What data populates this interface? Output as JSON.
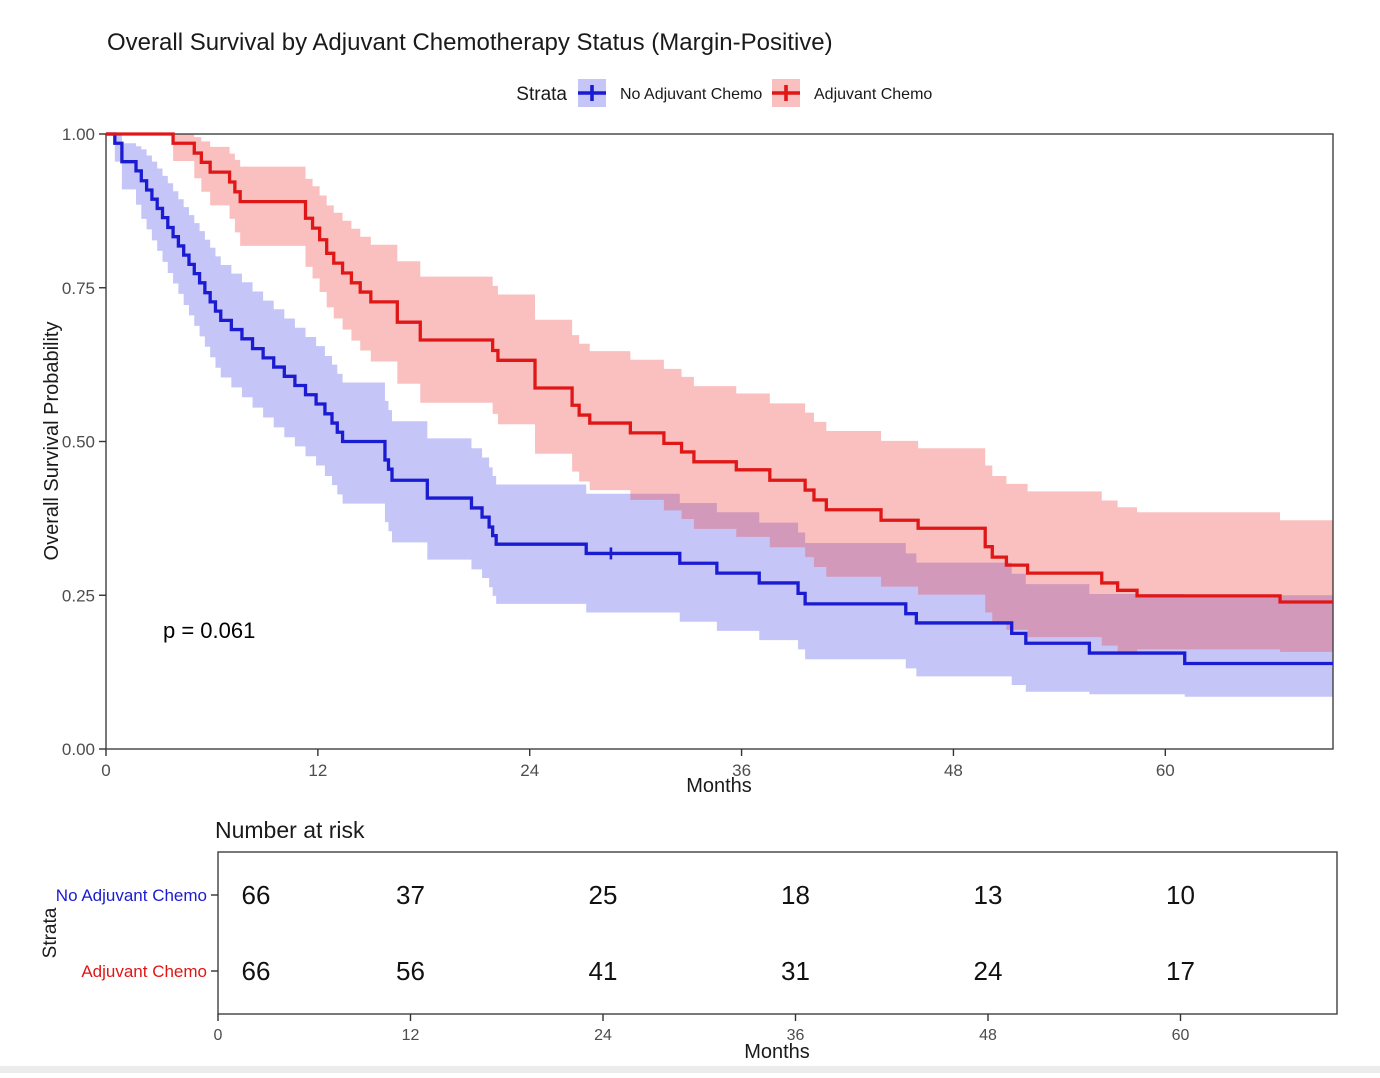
{
  "chart_data": {
    "type": "line",
    "subtype": "kaplan_meier_step",
    "title": "Overall Survival by Adjuvant Chemotherapy Status (Margin-Positive)",
    "p_value_label": "p = 0.061",
    "xlabel": "Months",
    "ylabel": "Overall Survival Probability",
    "xlim": [
      0,
      69.5
    ],
    "ylim": [
      0,
      1
    ],
    "x_ticks": [
      0,
      12,
      24,
      36,
      48,
      60
    ],
    "y_ticks": [
      0,
      0.25,
      0.5,
      0.75,
      1.0
    ],
    "y_tick_labels": [
      "0.00",
      "0.25",
      "0.50",
      "0.75",
      "1.00"
    ],
    "grid": "off",
    "legend": {
      "title": "Strata",
      "position": "top"
    },
    "series": [
      {
        "name": "No Adjuvant Chemo",
        "color": "#1b1bd1",
        "ci_fill": "rgba(80,80,235,0.33)",
        "key_fill": "#c5c5f8",
        "points": [
          [
            0,
            1,
            1,
            1
          ],
          [
            0.5,
            0.985,
            0.955,
            1
          ],
          [
            0.9,
            0.955,
            0.91,
            0.985
          ],
          [
            1.7,
            0.94,
            0.885,
            0.98
          ],
          [
            2.0,
            0.924,
            0.862,
            0.975
          ],
          [
            2.3,
            0.909,
            0.845,
            0.965
          ],
          [
            2.6,
            0.894,
            0.827,
            0.955
          ],
          [
            2.9,
            0.879,
            0.81,
            0.944
          ],
          [
            3.2,
            0.864,
            0.792,
            0.932
          ],
          [
            3.5,
            0.848,
            0.774,
            0.92
          ],
          [
            3.8,
            0.833,
            0.757,
            0.907
          ],
          [
            4.1,
            0.818,
            0.74,
            0.894
          ],
          [
            4.4,
            0.803,
            0.722,
            0.881
          ],
          [
            4.7,
            0.788,
            0.705,
            0.868
          ],
          [
            5.0,
            0.773,
            0.688,
            0.855
          ],
          [
            5.3,
            0.758,
            0.671,
            0.842
          ],
          [
            5.6,
            0.742,
            0.654,
            0.828
          ],
          [
            5.9,
            0.727,
            0.637,
            0.815
          ],
          [
            6.2,
            0.712,
            0.62,
            0.801
          ],
          [
            6.5,
            0.697,
            0.604,
            0.787
          ],
          [
            7.1,
            0.682,
            0.588,
            0.773
          ],
          [
            7.7,
            0.667,
            0.572,
            0.759
          ],
          [
            8.3,
            0.651,
            0.555,
            0.744
          ],
          [
            8.9,
            0.636,
            0.539,
            0.729
          ],
          [
            9.5,
            0.621,
            0.523,
            0.715
          ],
          [
            10.1,
            0.606,
            0.507,
            0.7
          ],
          [
            10.7,
            0.591,
            0.492,
            0.685
          ],
          [
            11.3,
            0.576,
            0.476,
            0.67
          ],
          [
            11.9,
            0.561,
            0.461,
            0.655
          ],
          [
            12.4,
            0.545,
            0.444,
            0.639
          ],
          [
            12.8,
            0.53,
            0.429,
            0.625
          ],
          [
            13.1,
            0.515,
            0.414,
            0.61
          ],
          [
            13.4,
            0.5,
            0.399,
            0.596
          ],
          [
            15.8,
            0.47,
            0.369,
            0.566
          ],
          [
            16.0,
            0.455,
            0.354,
            0.551
          ],
          [
            16.2,
            0.437,
            0.336,
            0.533
          ],
          [
            18.2,
            0.408,
            0.308,
            0.505
          ],
          [
            20.7,
            0.392,
            0.292,
            0.489
          ],
          [
            21.3,
            0.377,
            0.278,
            0.474
          ],
          [
            21.7,
            0.361,
            0.263,
            0.458
          ],
          [
            21.9,
            0.347,
            0.249,
            0.444
          ],
          [
            22.1,
            0.333,
            0.236,
            0.43
          ],
          [
            27.2,
            0.318,
            0.222,
            0.415
          ],
          [
            32.5,
            0.302,
            0.207,
            0.4
          ],
          [
            34.6,
            0.286,
            0.192,
            0.385
          ],
          [
            37.0,
            0.27,
            0.177,
            0.368
          ],
          [
            39.2,
            0.253,
            0.162,
            0.352
          ],
          [
            39.6,
            0.236,
            0.146,
            0.335
          ],
          [
            45.3,
            0.22,
            0.131,
            0.318
          ],
          [
            45.9,
            0.205,
            0.118,
            0.303
          ],
          [
            51.3,
            0.188,
            0.104,
            0.285
          ],
          [
            52.1,
            0.172,
            0.093,
            0.268
          ],
          [
            55.7,
            0.156,
            0.089,
            0.252
          ],
          [
            61.1,
            0.139,
            0.085,
            0.25
          ]
        ],
        "censors": [
          [
            28.6,
            0.318
          ]
        ]
      },
      {
        "name": "Adjuvant Chemo",
        "color": "#e01717",
        "ci_fill": "rgba(240,65,65,0.33)",
        "key_fill": "#fac0c0",
        "points": [
          [
            0,
            1,
            1,
            1
          ],
          [
            3.8,
            0.985,
            0.956,
            1
          ],
          [
            5.0,
            0.969,
            0.928,
            0.995
          ],
          [
            5.4,
            0.954,
            0.906,
            0.988
          ],
          [
            5.9,
            0.938,
            0.884,
            0.979
          ],
          [
            7.0,
            0.922,
            0.862,
            0.968
          ],
          [
            7.3,
            0.906,
            0.84,
            0.958
          ],
          [
            7.6,
            0.89,
            0.818,
            0.947
          ],
          [
            11.3,
            0.863,
            0.784,
            0.927
          ],
          [
            11.7,
            0.847,
            0.765,
            0.915
          ],
          [
            12.1,
            0.828,
            0.743,
            0.9
          ],
          [
            12.5,
            0.806,
            0.718,
            0.884
          ],
          [
            12.9,
            0.79,
            0.7,
            0.872
          ],
          [
            13.4,
            0.774,
            0.682,
            0.859
          ],
          [
            13.9,
            0.758,
            0.664,
            0.846
          ],
          [
            14.4,
            0.743,
            0.648,
            0.833
          ],
          [
            15.0,
            0.727,
            0.63,
            0.82
          ],
          [
            16.5,
            0.694,
            0.594,
            0.793
          ],
          [
            17.8,
            0.665,
            0.563,
            0.768
          ],
          [
            21.9,
            0.648,
            0.545,
            0.753
          ],
          [
            22.2,
            0.632,
            0.528,
            0.739
          ],
          [
            24.3,
            0.587,
            0.48,
            0.698
          ],
          [
            26.4,
            0.559,
            0.451,
            0.673
          ],
          [
            26.8,
            0.543,
            0.435,
            0.659
          ],
          [
            27.4,
            0.53,
            0.421,
            0.647
          ],
          [
            29.7,
            0.514,
            0.405,
            0.633
          ],
          [
            31.6,
            0.497,
            0.388,
            0.618
          ],
          [
            32.6,
            0.483,
            0.374,
            0.605
          ],
          [
            33.3,
            0.467,
            0.358,
            0.59
          ],
          [
            35.7,
            0.454,
            0.345,
            0.578
          ],
          [
            37.6,
            0.437,
            0.328,
            0.562
          ],
          [
            39.6,
            0.421,
            0.312,
            0.547
          ],
          [
            40.1,
            0.405,
            0.296,
            0.532
          ],
          [
            40.8,
            0.389,
            0.28,
            0.517
          ],
          [
            43.9,
            0.372,
            0.264,
            0.501
          ],
          [
            46.0,
            0.359,
            0.251,
            0.489
          ],
          [
            49.8,
            0.329,
            0.222,
            0.461
          ],
          [
            50.2,
            0.312,
            0.206,
            0.444
          ],
          [
            51.0,
            0.299,
            0.194,
            0.431
          ],
          [
            52.2,
            0.286,
            0.182,
            0.419
          ],
          [
            56.4,
            0.27,
            0.168,
            0.404
          ],
          [
            57.3,
            0.258,
            0.158,
            0.393
          ],
          [
            58.4,
            0.249,
            0.162,
            0.385
          ],
          [
            66.5,
            0.239,
            0.158,
            0.372
          ]
        ],
        "censors": []
      }
    ]
  },
  "risk_table": {
    "title": "Number at risk",
    "axis_label": "Strata",
    "x_label": "Months",
    "x_ticks": [
      0,
      12,
      24,
      36,
      48,
      60
    ],
    "rows": [
      {
        "label": "No Adjuvant Chemo",
        "color": "#1b1bd1",
        "values": [
          66,
          37,
          25,
          18,
          13,
          10
        ]
      },
      {
        "label": "Adjuvant Chemo",
        "color": "#e01717",
        "values": [
          66,
          56,
          41,
          31,
          24,
          17
        ]
      }
    ]
  }
}
